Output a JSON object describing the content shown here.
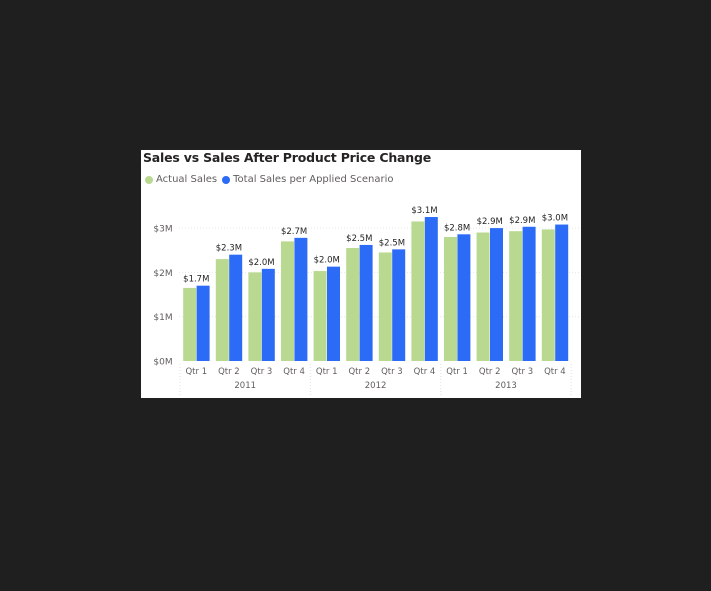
{
  "chart_data": {
    "type": "bar",
    "title": "Sales vs Sales After Product Price Change",
    "xlabel": "",
    "ylabel": "",
    "ylim": [
      0,
      3.3
    ],
    "yticks": [
      {
        "value": 0,
        "label": "$0M"
      },
      {
        "value": 1,
        "label": "$1M"
      },
      {
        "value": 2,
        "label": "$2M"
      },
      {
        "value": 3,
        "label": "$3M"
      }
    ],
    "grid": true,
    "legend_position": "top-left",
    "categories": [
      "Qtr 1",
      "Qtr 2",
      "Qtr 3",
      "Qtr 4",
      "Qtr 1",
      "Qtr 2",
      "Qtr 3",
      "Qtr 4",
      "Qtr 1",
      "Qtr 2",
      "Qtr 3",
      "Qtr 4"
    ],
    "groups": [
      {
        "label": "2011",
        "count": 4
      },
      {
        "label": "2012",
        "count": 4
      },
      {
        "label": "2013",
        "count": 4
      }
    ],
    "series": [
      {
        "name": "Actual Sales",
        "color": "#b8d98f",
        "values": [
          1.65,
          2.3,
          2.0,
          2.7,
          2.03,
          2.55,
          2.45,
          3.15,
          2.8,
          2.9,
          2.93,
          2.97
        ]
      },
      {
        "name": "Total Sales per Applied Scenario",
        "color": "#2b6bf5",
        "values": [
          1.7,
          2.4,
          2.08,
          2.78,
          2.13,
          2.62,
          2.52,
          3.25,
          2.86,
          3.0,
          3.03,
          3.08
        ]
      }
    ],
    "data_labels": [
      "$1.7M",
      "$2.3M",
      "$2.0M",
      "$2.7M",
      "$2.0M",
      "$2.5M",
      "$2.5M",
      "$3.1M",
      "$2.8M",
      "$2.9M",
      "$2.9M",
      "$3.0M"
    ]
  }
}
